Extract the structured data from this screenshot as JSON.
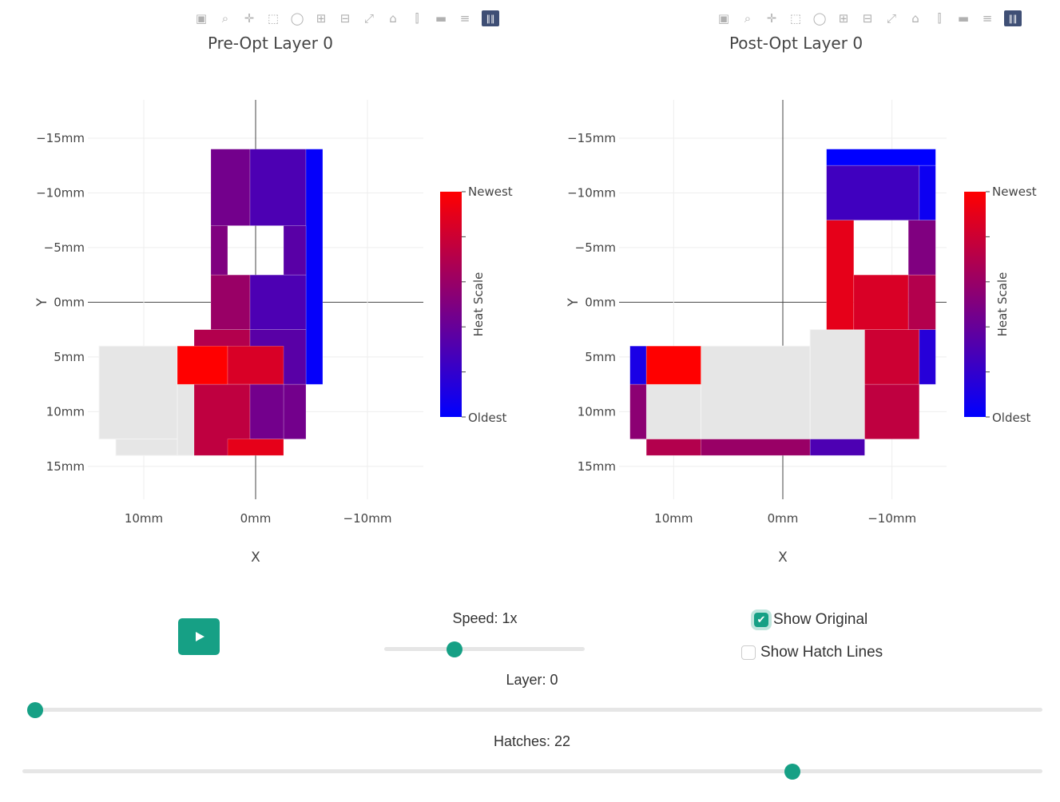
{
  "colors": {
    "accent": "#16a085",
    "oldest": "#0000ff",
    "newest": "#ff0000",
    "unvisited": "#e6e6e6"
  },
  "modebar_icons": [
    "camera-icon",
    "zoom-icon",
    "pan-icon",
    "box-select-icon",
    "lasso-icon",
    "zoom-in-icon",
    "zoom-out-icon",
    "autoscale-icon",
    "reset-axes-icon",
    "spike-lines-icon",
    "hover-closest-icon",
    "hover-compare-icon",
    "plotly-logo-icon"
  ],
  "chart_data": [
    {
      "type": "heatmap",
      "title": "Pre-Opt Layer 0",
      "xlabel": "X",
      "ylabel": "Y",
      "xlim": [
        15,
        -15
      ],
      "ylim": [
        18,
        -18.5
      ],
      "x_tick_labels": [
        "10mm",
        "0mm",
        "−10mm"
      ],
      "y_tick_labels": [
        "−15mm",
        "−10mm",
        "−5mm",
        "0mm",
        "5mm",
        "10mm",
        "15mm"
      ],
      "colorbar": {
        "title": "Heat Scale",
        "top_label": "Newest",
        "bottom_label": "Oldest"
      },
      "grid": true,
      "unvisited_cells": [
        {
          "x0": 14,
          "x1": 7,
          "y0": 4,
          "y1": 12.5
        },
        {
          "x0": 12.5,
          "x1": 7,
          "y0": 12.5,
          "y1": 14
        },
        {
          "x0": 7,
          "x1": 2.5,
          "y0": 7.5,
          "y1": 14
        }
      ],
      "cells": [
        {
          "x0": 4,
          "x1": 0.5,
          "y0": -14,
          "y1": -7,
          "heat": 0.45
        },
        {
          "x0": 0.5,
          "x1": -4.5,
          "y0": -14,
          "y1": -7,
          "heat": 0.3
        },
        {
          "x0": -4.5,
          "x1": -6,
          "y0": -14,
          "y1": 7.5,
          "heat": 0.02
        },
        {
          "x0": 4,
          "x1": 2.5,
          "y0": -7,
          "y1": -2.5,
          "heat": 0.5
        },
        {
          "x0": -2.5,
          "x1": -4.5,
          "y0": -7,
          "y1": -2.5,
          "heat": 0.35
        },
        {
          "x0": 4,
          "x1": 0.5,
          "y0": -2.5,
          "y1": 2.5,
          "heat": 0.6
        },
        {
          "x0": 0.5,
          "x1": -4.5,
          "y0": -2.5,
          "y1": 2.5,
          "heat": 0.3
        },
        {
          "x0": 5.5,
          "x1": 0.5,
          "y0": 2.5,
          "y1": 7.5,
          "heat": 0.7
        },
        {
          "x0": 0.5,
          "x1": -4.5,
          "y0": 2.5,
          "y1": 7.5,
          "heat": 0.35
        },
        {
          "x0": 7,
          "x1": 2.5,
          "y0": 4,
          "y1": 7.5,
          "heat": 1.0
        },
        {
          "x0": 2.5,
          "x1": -2.5,
          "y0": 4,
          "y1": 7.5,
          "heat": 0.85
        },
        {
          "x0": 2.5,
          "x1": -2.5,
          "y0": 7.5,
          "y1": 12.5,
          "heat": 0.85
        },
        {
          "x0": -2.5,
          "x1": -4.5,
          "y0": 7.5,
          "y1": 12.5,
          "heat": 0.45
        },
        {
          "x0": 5.5,
          "x1": 0.5,
          "y0": 7.5,
          "y1": 14,
          "heat": 0.75
        },
        {
          "x0": 0.5,
          "x1": -2.5,
          "y0": 7.5,
          "y1": 12.5,
          "heat": 0.45
        },
        {
          "x0": 2.5,
          "x1": -2.5,
          "y0": 12.5,
          "y1": 14,
          "heat": 0.9
        }
      ]
    },
    {
      "type": "heatmap",
      "title": "Post-Opt Layer 0",
      "xlabel": "X",
      "ylabel": "Y",
      "xlim": [
        15,
        -15
      ],
      "ylim": [
        18,
        -18.5
      ],
      "x_tick_labels": [
        "10mm",
        "0mm",
        "−10mm"
      ],
      "y_tick_labels": [
        "−15mm",
        "−10mm",
        "−5mm",
        "0mm",
        "5mm",
        "10mm",
        "15mm"
      ],
      "colorbar": {
        "title": "Heat Scale",
        "top_label": "Newest",
        "bottom_label": "Oldest"
      },
      "grid": true,
      "unvisited_cells": [
        {
          "x0": 12.5,
          "x1": 7.5,
          "y0": 7.5,
          "y1": 12.5
        },
        {
          "x0": 7.5,
          "x1": -2.5,
          "y0": 4,
          "y1": 12.5
        },
        {
          "x0": -2.5,
          "x1": -7.5,
          "y0": 2.5,
          "y1": 12.5
        }
      ],
      "cells": [
        {
          "x0": -4,
          "x1": -14,
          "y0": -14,
          "y1": -12.5,
          "heat": 0.0
        },
        {
          "x0": -4,
          "x1": -12.5,
          "y0": -12.5,
          "y1": -7.5,
          "heat": 0.25
        },
        {
          "x0": -12.5,
          "x1": -14,
          "y0": -12.5,
          "y1": -7.5,
          "heat": 0.05
        },
        {
          "x0": -4,
          "x1": -6.5,
          "y0": -7.5,
          "y1": 2.5,
          "heat": 0.9
        },
        {
          "x0": -11.5,
          "x1": -14,
          "y0": -7.5,
          "y1": -2.5,
          "heat": 0.5
        },
        {
          "x0": -6.5,
          "x1": -11.5,
          "y0": -2.5,
          "y1": 2.5,
          "heat": 0.85
        },
        {
          "x0": -11.5,
          "x1": -14,
          "y0": -2.5,
          "y1": 2.5,
          "heat": 0.7
        },
        {
          "x0": -7.5,
          "x1": -12.5,
          "y0": 2.5,
          "y1": 7.5,
          "heat": 0.8
        },
        {
          "x0": -12.5,
          "x1": -14,
          "y0": 2.5,
          "y1": 7.5,
          "heat": 0.15
        },
        {
          "x0": -7.5,
          "x1": -12.5,
          "y0": 7.5,
          "y1": 12.5,
          "heat": 0.75
        },
        {
          "x0": 14,
          "x1": 12.5,
          "y0": 4,
          "y1": 7.5,
          "heat": 0.1
        },
        {
          "x0": 14,
          "x1": 12.5,
          "y0": 7.5,
          "y1": 12.5,
          "heat": 0.55
        },
        {
          "x0": 12.5,
          "x1": 7.5,
          "y0": 4,
          "y1": 7.5,
          "heat": 1.0
        },
        {
          "x0": 12.5,
          "x1": 7.5,
          "y0": 12.5,
          "y1": 14,
          "heat": 0.7
        },
        {
          "x0": 7.5,
          "x1": -2.5,
          "y0": 12.5,
          "y1": 14,
          "heat": 0.6
        },
        {
          "x0": -2.5,
          "x1": -7.5,
          "y0": 12.5,
          "y1": 14,
          "heat": 0.3
        }
      ]
    }
  ],
  "controls": {
    "speed_label": "Speed: 1x",
    "speed_value": 1,
    "speed_fraction": 0.35,
    "show_original_label": "Show Original",
    "show_original_checked": true,
    "show_hatch_lines_label": "Show Hatch Lines",
    "show_hatch_lines_checked": false,
    "layer_label": "Layer: 0",
    "layer_fraction": 0.0,
    "hatches_label": "Hatches: 22",
    "hatches_fraction": 0.755
  }
}
